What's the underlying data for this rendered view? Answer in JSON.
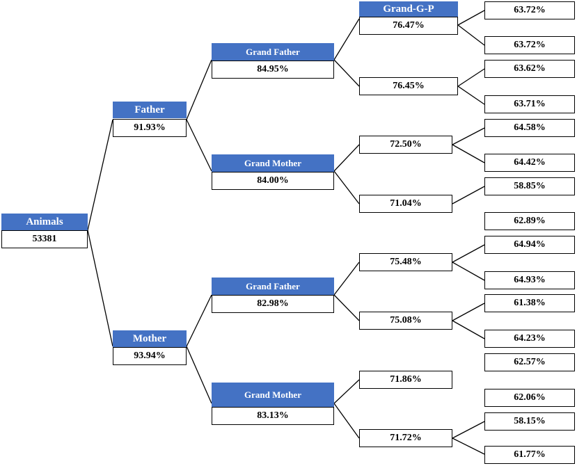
{
  "root": {
    "label": "Animals",
    "value": "53381"
  },
  "father": {
    "label": "Father",
    "value": "91.93%",
    "grand_father": {
      "label": "Grand Father",
      "value": "84.95%",
      "ggp_top": {
        "label": "Grand-G-P",
        "value": "76.47%",
        "leaves": [
          "63.72%",
          "63.72%"
        ]
      },
      "ggp_bottom": {
        "value": "76.45%",
        "leaves": [
          "63.62%",
          "63.71%"
        ]
      }
    },
    "grand_mother": {
      "label": "Grand Mother",
      "value": "84.00%",
      "ggp_top": {
        "value": "72.50%",
        "leaves": [
          "64.58%",
          "64.42%"
        ]
      },
      "ggp_bottom": {
        "value": "71.04%",
        "leaves": [
          "58.85%",
          "62.89%"
        ]
      }
    }
  },
  "mother": {
    "label": "Mother",
    "value": "93.94%",
    "grand_father": {
      "label": "Grand Father",
      "value": "82.98%",
      "ggp_top": {
        "value": "75.48%",
        "leaves": [
          "64.94%",
          "64.93%"
        ]
      },
      "ggp_bottom": {
        "value": "75.08%",
        "leaves": [
          "61.38%",
          "64.23%"
        ]
      }
    },
    "grand_mother": {
      "label": "Grand Mother",
      "value": "83.13%",
      "ggp_top": {
        "value": "71.86%",
        "leaves": [
          "62.57%",
          "62.06%"
        ]
      },
      "ggp_bottom": {
        "value": "71.72%",
        "leaves": [
          "58.15%",
          "61.77%"
        ]
      }
    }
  },
  "colors": {
    "header": "#4472c4",
    "line": "#000000"
  }
}
